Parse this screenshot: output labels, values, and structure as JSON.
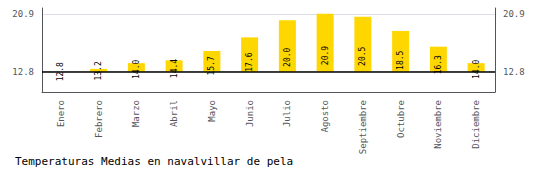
{
  "chart_data": {
    "type": "bar",
    "title": "Temperaturas Medias en navalvillar de pela",
    "categories": [
      "Enero",
      "Febrero",
      "Marzo",
      "Abril",
      "Mayo",
      "Junio",
      "Julio",
      "Agosto",
      "Septiembre",
      "Octubre",
      "Noviembre",
      "Diciembre"
    ],
    "values": [
      12.8,
      13.2,
      14.0,
      14.4,
      15.7,
      17.6,
      20.0,
      20.9,
      20.5,
      18.5,
      16.3,
      14.0
    ],
    "value_labels": [
      "12.8",
      "13.2",
      "14.0",
      "14.4",
      "15.7",
      "17.6",
      "20.0",
      "20.9",
      "20.5",
      "18.5",
      "16.3",
      "14.0"
    ],
    "bar_base": 12.8,
    "color": "#FFD700",
    "ylim": [
      9.965,
      21.71
    ],
    "yticks": [
      12.8,
      20.9
    ],
    "y2lim": [
      9.965,
      21.71
    ],
    "y2ticks": [
      12.8,
      20.9
    ],
    "grid": true,
    "data_labels": true
  }
}
